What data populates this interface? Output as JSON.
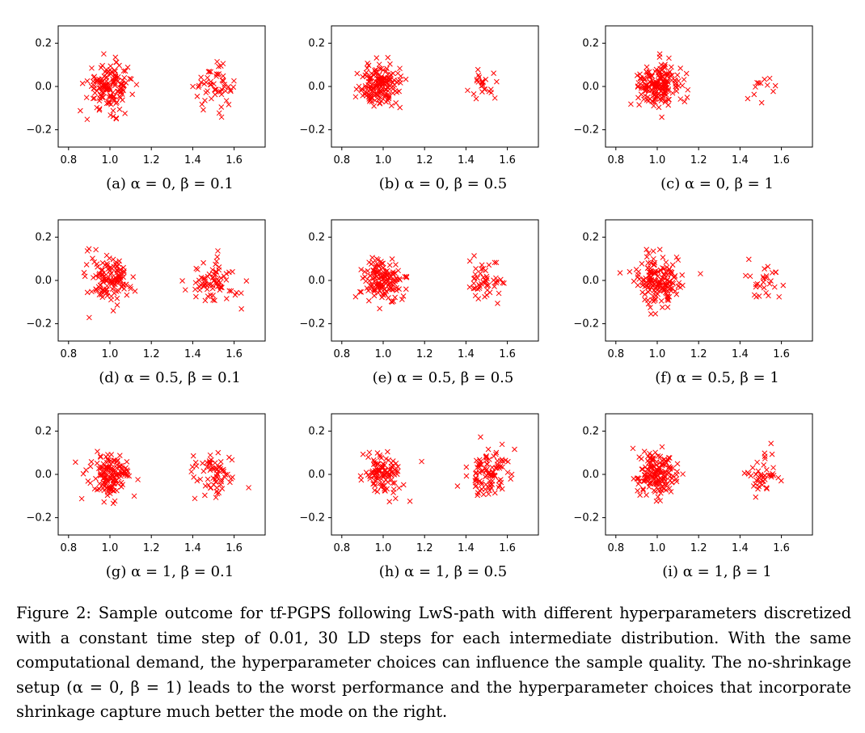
{
  "chart_data": [
    {
      "type": "scatter",
      "panel": "a",
      "caption": "(a) α = 0, β = 0.1",
      "alpha": 0,
      "beta": 0.1,
      "marker": "x",
      "color": "#ff0000",
      "xlim": [
        0.75,
        1.75
      ],
      "ylim": [
        -0.28,
        0.28
      ],
      "xticks": [
        "0.8",
        "1.0",
        "1.2",
        "1.4",
        "1.6"
      ],
      "yticks": [
        "0.2",
        "0.0",
        "−0.2"
      ],
      "clusters": [
        {
          "center_x": 1.0,
          "center_y": 0.0,
          "spread": 0.055,
          "count": 150
        },
        {
          "center_x": 1.5,
          "center_y": 0.0,
          "spread": 0.045,
          "count": 55
        }
      ]
    },
    {
      "type": "scatter",
      "panel": "b",
      "caption": "(b) α = 0, β = 0.5",
      "alpha": 0,
      "beta": 0.5,
      "marker": "x",
      "color": "#ff0000",
      "xlim": [
        0.75,
        1.75
      ],
      "ylim": [
        -0.28,
        0.28
      ],
      "xticks": [
        "0.8",
        "1.0",
        "1.2",
        "1.4",
        "1.6"
      ],
      "yticks": [
        "0.2",
        "0.0",
        "−0.2"
      ],
      "clusters": [
        {
          "center_x": 0.99,
          "center_y": 0.0,
          "spread": 0.05,
          "count": 165
        },
        {
          "center_x": 1.5,
          "center_y": 0.01,
          "spread": 0.04,
          "count": 25
        }
      ]
    },
    {
      "type": "scatter",
      "panel": "c",
      "caption": "(c) α = 0, β = 1",
      "alpha": 0,
      "beta": 1,
      "marker": "x",
      "color": "#ff0000",
      "xlim": [
        0.75,
        1.75
      ],
      "ylim": [
        -0.28,
        0.28
      ],
      "xticks": [
        "0.8",
        "1.0",
        "1.2",
        "1.4",
        "1.6"
      ],
      "yticks": [
        "0.2",
        "0.0",
        "−0.2"
      ],
      "clusters": [
        {
          "center_x": 1.0,
          "center_y": 0.0,
          "spread": 0.05,
          "count": 185
        },
        {
          "center_x": 1.5,
          "center_y": 0.0,
          "spread": 0.05,
          "count": 12
        }
      ]
    },
    {
      "type": "scatter",
      "panel": "d",
      "caption": "(d) α = 0.5, β = 0.1",
      "alpha": 0.5,
      "beta": 0.1,
      "marker": "x",
      "color": "#ff0000",
      "xlim": [
        0.75,
        1.75
      ],
      "ylim": [
        -0.28,
        0.28
      ],
      "xticks": [
        "0.8",
        "1.0",
        "1.2",
        "1.4",
        "1.6"
      ],
      "yticks": [
        "0.2",
        "0.0",
        "−0.2"
      ],
      "clusters": [
        {
          "center_x": 1.0,
          "center_y": 0.0,
          "spread": 0.055,
          "count": 130
        },
        {
          "center_x": 1.5,
          "center_y": 0.0,
          "spread": 0.055,
          "count": 75
        }
      ]
    },
    {
      "type": "scatter",
      "panel": "e",
      "caption": "(e) α = 0.5, β = 0.5",
      "alpha": 0.5,
      "beta": 0.5,
      "marker": "x",
      "color": "#ff0000",
      "xlim": [
        0.75,
        1.75
      ],
      "ylim": [
        -0.28,
        0.28
      ],
      "xticks": [
        "0.8",
        "1.0",
        "1.2",
        "1.4",
        "1.6"
      ],
      "yticks": [
        "0.2",
        "0.0",
        "−0.2"
      ],
      "clusters": [
        {
          "center_x": 1.0,
          "center_y": 0.0,
          "spread": 0.05,
          "count": 150
        },
        {
          "center_x": 1.5,
          "center_y": 0.0,
          "spread": 0.045,
          "count": 50
        }
      ]
    },
    {
      "type": "scatter",
      "panel": "f",
      "caption": "(f) α = 0.5, β = 1",
      "alpha": 0.5,
      "beta": 1,
      "marker": "x",
      "color": "#ff0000",
      "xlim": [
        0.75,
        1.75
      ],
      "ylim": [
        -0.28,
        0.28
      ],
      "xticks": [
        "0.8",
        "1.0",
        "1.2",
        "1.4",
        "1.6"
      ],
      "yticks": [
        "0.2",
        "0.0",
        "−0.2"
      ],
      "clusters": [
        {
          "center_x": 1.0,
          "center_y": 0.0,
          "spread": 0.055,
          "count": 170
        },
        {
          "center_x": 1.5,
          "center_y": 0.0,
          "spread": 0.045,
          "count": 28
        }
      ]
    },
    {
      "type": "scatter",
      "panel": "g",
      "caption": "(g) α = 1, β = 0.1",
      "alpha": 1,
      "beta": 0.1,
      "marker": "x",
      "color": "#ff0000",
      "xlim": [
        0.75,
        1.75
      ],
      "ylim": [
        -0.28,
        0.28
      ],
      "xticks": [
        "0.8",
        "1.0",
        "1.2",
        "1.4",
        "1.6"
      ],
      "yticks": [
        "0.2",
        "0.0",
        "−0.2"
      ],
      "clusters": [
        {
          "center_x": 1.0,
          "center_y": 0.0,
          "spread": 0.05,
          "count": 140
        },
        {
          "center_x": 1.5,
          "center_y": 0.0,
          "spread": 0.045,
          "count": 70
        }
      ]
    },
    {
      "type": "scatter",
      "panel": "h",
      "caption": "(h) α = 1, β = 0.5",
      "alpha": 1,
      "beta": 0.5,
      "marker": "x",
      "color": "#ff0000",
      "xlim": [
        0.75,
        1.75
      ],
      "ylim": [
        -0.28,
        0.28
      ],
      "xticks": [
        "0.8",
        "1.0",
        "1.2",
        "1.4",
        "1.6"
      ],
      "yticks": [
        "0.2",
        "0.0",
        "−0.2"
      ],
      "clusters": [
        {
          "center_x": 1.0,
          "center_y": 0.0,
          "spread": 0.05,
          "count": 110
        },
        {
          "center_x": 1.5,
          "center_y": 0.0,
          "spread": 0.055,
          "count": 100
        }
      ]
    },
    {
      "type": "scatter",
      "panel": "i",
      "caption": "(i) α = 1, β = 1",
      "alpha": 1,
      "beta": 1,
      "marker": "x",
      "color": "#ff0000",
      "xlim": [
        0.75,
        1.75
      ],
      "ylim": [
        -0.28,
        0.28
      ],
      "xticks": [
        "0.8",
        "1.0",
        "1.2",
        "1.4",
        "1.6"
      ],
      "yticks": [
        "0.2",
        "0.0",
        "−0.2"
      ],
      "clusters": [
        {
          "center_x": 1.0,
          "center_y": 0.0,
          "spread": 0.05,
          "count": 165
        },
        {
          "center_x": 1.5,
          "center_y": 0.0,
          "spread": 0.045,
          "count": 45
        }
      ]
    }
  ],
  "figure_caption": "Figure 2: Sample outcome for tf-PGPS following LwS-path with different hyperparameters discretized with a constant time step of 0.01, 30 LD steps for each intermediate distribution. With the same computational demand, the hyperparameter choices can influence the sample quality. The no-shrinkage setup (α = 0, β = 1) leads to the worst performance and the hyperparameter choices that incorporate shrinkage capture much better the mode on the right."
}
